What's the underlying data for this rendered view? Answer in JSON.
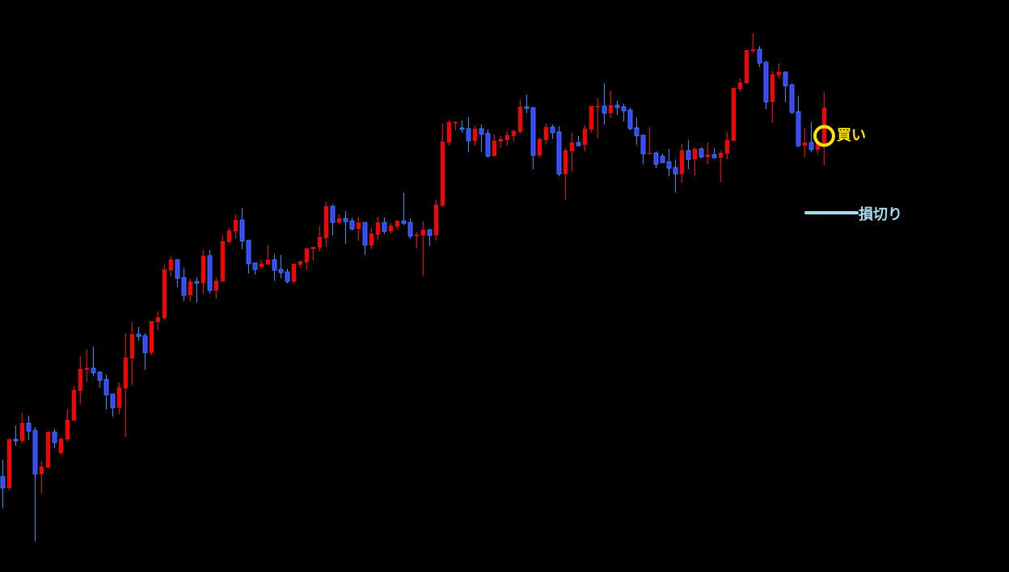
{
  "chart_data": {
    "type": "candlestick",
    "title": "",
    "xlabel": "",
    "ylabel": "",
    "ylim": [
      0,
      700
    ],
    "grid": false,
    "legend": "none",
    "colors": {
      "background": "#000000",
      "bullish": "#ff0000",
      "bearish_body": "#4040ff",
      "bearish_edge": "#3090ff",
      "buy_marker": "#ffe600",
      "stop_line": "#a8dcec"
    },
    "candle_format": [
      "open",
      "high",
      "low",
      "close"
    ],
    "candles": [
      [
        111,
        132,
        72,
        97
      ],
      [
        97,
        158,
        94,
        157
      ],
      [
        157,
        174,
        149,
        155
      ],
      [
        155,
        190,
        152,
        177
      ],
      [
        177,
        186,
        156,
        167
      ],
      [
        168,
        172,
        31,
        114
      ],
      [
        114,
        130,
        90,
        123
      ],
      [
        122,
        167,
        122,
        166
      ],
      [
        166,
        170,
        146,
        153
      ],
      [
        140,
        158,
        138,
        158
      ],
      [
        157,
        194,
        154,
        181
      ],
      [
        180,
        223,
        180,
        218
      ],
      [
        217,
        260,
        201,
        244
      ],
      [
        243,
        268,
        228,
        245
      ],
      [
        245,
        272,
        235,
        239
      ],
      [
        240,
        241,
        221,
        230
      ],
      [
        231,
        237,
        194,
        212
      ],
      [
        213,
        213,
        185,
        196
      ],
      [
        196,
        227,
        188,
        221
      ],
      [
        220,
        288,
        160,
        258
      ],
      [
        257,
        302,
        224,
        287
      ],
      [
        287,
        296,
        279,
        284
      ],
      [
        285,
        288,
        243,
        264
      ],
      [
        264,
        303,
        261,
        303
      ],
      [
        302,
        315,
        292,
        308
      ],
      [
        307,
        373,
        305,
        367
      ],
      [
        366,
        383,
        359,
        379
      ],
      [
        379,
        380,
        345,
        356
      ],
      [
        357,
        369,
        328,
        335
      ],
      [
        335,
        355,
        328,
        352
      ],
      [
        352,
        357,
        326,
        350
      ],
      [
        350,
        391,
        337,
        384
      ],
      [
        384,
        391,
        337,
        341
      ],
      [
        341,
        357,
        331,
        353
      ],
      [
        352,
        409,
        352,
        402
      ],
      [
        401,
        418,
        399,
        415
      ],
      [
        414,
        435,
        405,
        428
      ],
      [
        428,
        443,
        392,
        402
      ],
      [
        403,
        403,
        362,
        374
      ],
      [
        375,
        375,
        361,
        367
      ],
      [
        370,
        379,
        370,
        374
      ],
      [
        373,
        397,
        373,
        379
      ],
      [
        379,
        386,
        353,
        366
      ],
      [
        367,
        385,
        356,
        363
      ],
      [
        364,
        368,
        350,
        352
      ],
      [
        352,
        374,
        350,
        374
      ],
      [
        373,
        378,
        369,
        377
      ],
      [
        376,
        393,
        367,
        393
      ],
      [
        392,
        395,
        378,
        395
      ],
      [
        394,
        421,
        389,
        407
      ],
      [
        406,
        451,
        395,
        445
      ],
      [
        445,
        447,
        409,
        425
      ],
      [
        425,
        435,
        423,
        430
      ],
      [
        430,
        439,
        399,
        426
      ],
      [
        427,
        431,
        415,
        417
      ],
      [
        417,
        432,
        402,
        425
      ],
      [
        425,
        425,
        385,
        397
      ],
      [
        397,
        418,
        392,
        411
      ],
      [
        410,
        432,
        403,
        425
      ],
      [
        425,
        431,
        411,
        414
      ],
      [
        414,
        424,
        411,
        421
      ],
      [
        420,
        428,
        416,
        427
      ],
      [
        427,
        462,
        422,
        424
      ],
      [
        425,
        430,
        405,
        408
      ],
      [
        408,
        413,
        393,
        410
      ],
      [
        409,
        426,
        359,
        416
      ],
      [
        416,
        417,
        396,
        409
      ],
      [
        409,
        453,
        403,
        447
      ],
      [
        446,
        547,
        444,
        525
      ],
      [
        524,
        551,
        520,
        549
      ],
      [
        548,
        550,
        539,
        549
      ],
      [
        542,
        551,
        536,
        540
      ],
      [
        541,
        555,
        512,
        526
      ],
      [
        526,
        545,
        520,
        541
      ],
      [
        541,
        546,
        512,
        534
      ],
      [
        535,
        540,
        505,
        507
      ],
      [
        507,
        534,
        507,
        526
      ],
      [
        525,
        532,
        517,
        528
      ],
      [
        527,
        538,
        520,
        533
      ],
      [
        532,
        540,
        525,
        538
      ],
      [
        537,
        576,
        535,
        568
      ],
      [
        568,
        583,
        560,
        566
      ],
      [
        567,
        567,
        491,
        508
      ],
      [
        508,
        530,
        505,
        528
      ],
      [
        527,
        547,
        521,
        543
      ],
      [
        543,
        546,
        528,
        536
      ],
      [
        537,
        544,
        482,
        485
      ],
      [
        485,
        517,
        453,
        514
      ],
      [
        513,
        536,
        488,
        524
      ],
      [
        524,
        532,
        519,
        520
      ],
      [
        521,
        545,
        513,
        541
      ],
      [
        540,
        569,
        536,
        569
      ],
      [
        568,
        579,
        529,
        569
      ],
      [
        569,
        597,
        546,
        560
      ],
      [
        560,
        588,
        554,
        570
      ],
      [
        570,
        576,
        558,
        567
      ],
      [
        568,
        572,
        550,
        563
      ],
      [
        564,
        567,
        539,
        541
      ],
      [
        542,
        554,
        521,
        532
      ],
      [
        533,
        533,
        497,
        510
      ],
      [
        510,
        543,
        510,
        511
      ],
      [
        511,
        513,
        492,
        497
      ],
      [
        507,
        510,
        499,
        499
      ],
      [
        500,
        516,
        482,
        492
      ],
      [
        493,
        503,
        462,
        485
      ],
      [
        485,
        522,
        474,
        514
      ],
      [
        514,
        527,
        491,
        503
      ],
      [
        503,
        518,
        483,
        516
      ],
      [
        516,
        518,
        504,
        506
      ],
      [
        506,
        524,
        497,
        509
      ],
      [
        509,
        517,
        504,
        505
      ],
      [
        505,
        513,
        475,
        511
      ],
      [
        510,
        537,
        503,
        527
      ],
      [
        526,
        592,
        526,
        591
      ],
      [
        590,
        603,
        587,
        598
      ],
      [
        597,
        638,
        597,
        638
      ],
      [
        637,
        659,
        634,
        639
      ],
      [
        639,
        643,
        617,
        622
      ],
      [
        623,
        625,
        565,
        574
      ],
      [
        574,
        612,
        548,
        608
      ],
      [
        607,
        622,
        603,
        611
      ],
      [
        611,
        612,
        574,
        594
      ],
      [
        595,
        597,
        559,
        561
      ],
      [
        562,
        581,
        518,
        520
      ],
      [
        520,
        542,
        506,
        524
      ],
      [
        524,
        549,
        512,
        515
      ],
      [
        515,
        528,
        510,
        525
      ],
      [
        523,
        586,
        496,
        567
      ]
    ],
    "annotations": {
      "buy": {
        "label": "買い",
        "candle_index": 127,
        "price": 532
      },
      "stop_loss": {
        "label": "損切り",
        "price": 437
      }
    }
  }
}
